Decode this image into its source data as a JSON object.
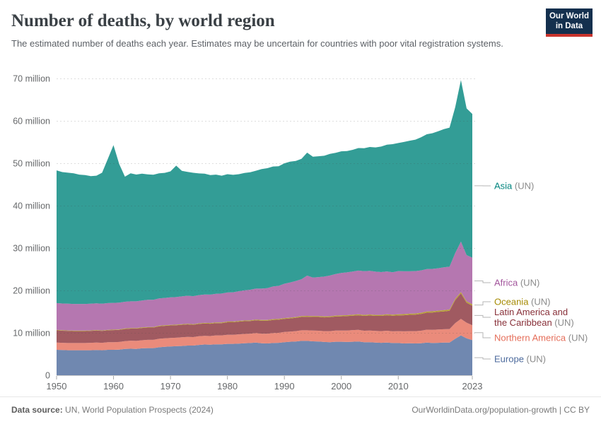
{
  "logo": {
    "line1": "Our World",
    "line2": "in Data"
  },
  "footer": {
    "source_label": "Data source:",
    "source_text": " UN, World Population Prospects (2024)",
    "right_text": "OurWorldinData.org/population-growth | CC BY"
  },
  "chart_data": {
    "type": "area",
    "stacked": true,
    "title": "Number of deaths, by world region",
    "subtitle": "The estimated number of deaths each year. Estimates may be uncertain for countries with poor vital registration systems.",
    "unit": "deaths per year (millions)",
    "ylim": [
      0,
      70
    ],
    "grid": true,
    "legend_position": "right",
    "x": [
      1950,
      1951,
      1952,
      1953,
      1954,
      1955,
      1956,
      1957,
      1958,
      1959,
      1960,
      1961,
      1962,
      1963,
      1964,
      1965,
      1966,
      1967,
      1968,
      1969,
      1970,
      1971,
      1972,
      1973,
      1974,
      1975,
      1976,
      1977,
      1978,
      1979,
      1980,
      1981,
      1982,
      1983,
      1984,
      1985,
      1986,
      1987,
      1988,
      1989,
      1990,
      1991,
      1992,
      1993,
      1994,
      1995,
      1996,
      1997,
      1998,
      1999,
      2000,
      2001,
      2002,
      2003,
      2004,
      2005,
      2006,
      2007,
      2008,
      2009,
      2010,
      2011,
      2012,
      2013,
      2014,
      2015,
      2016,
      2017,
      2018,
      2019,
      2020,
      2021,
      2022,
      2023
    ],
    "y_ticks": [
      {
        "value": 0,
        "label": "0"
      },
      {
        "value": 10,
        "label": "10 million"
      },
      {
        "value": 20,
        "label": "20 million"
      },
      {
        "value": 30,
        "label": "30 million"
      },
      {
        "value": 40,
        "label": "40 million"
      },
      {
        "value": 50,
        "label": "50 million"
      },
      {
        "value": 60,
        "label": "60 million"
      },
      {
        "value": 70,
        "label": "70 million"
      }
    ],
    "x_ticks": [
      {
        "value": 1950,
        "label": "1950"
      },
      {
        "value": 1960,
        "label": "1960"
      },
      {
        "value": 1970,
        "label": "1970"
      },
      {
        "value": 1980,
        "label": "1980"
      },
      {
        "value": 1990,
        "label": "1990"
      },
      {
        "value": 2000,
        "label": "2000"
      },
      {
        "value": 2010,
        "label": "2010"
      },
      {
        "value": 2023,
        "label": "2023"
      }
    ],
    "series": [
      {
        "id": "europe",
        "label": "Europe",
        "suffix": "(UN)",
        "color_fill": "#7088B0",
        "color_text": "#4C6A9C",
        "values": [
          6.0,
          5.95,
          5.9,
          5.9,
          5.9,
          5.9,
          5.9,
          5.95,
          5.9,
          6.0,
          6.0,
          6.05,
          6.2,
          6.25,
          6.2,
          6.35,
          6.4,
          6.4,
          6.6,
          6.7,
          6.8,
          6.85,
          6.9,
          7.0,
          7.0,
          7.15,
          7.25,
          7.2,
          7.3,
          7.3,
          7.4,
          7.4,
          7.45,
          7.55,
          7.6,
          7.7,
          7.55,
          7.5,
          7.6,
          7.65,
          7.8,
          7.9,
          7.95,
          8.1,
          8.1,
          8.0,
          7.95,
          7.85,
          7.8,
          7.9,
          7.9,
          7.85,
          7.9,
          7.95,
          7.8,
          7.8,
          7.7,
          7.65,
          7.7,
          7.6,
          7.6,
          7.5,
          7.55,
          7.5,
          7.55,
          7.7,
          7.6,
          7.65,
          7.7,
          7.7,
          8.6,
          9.4,
          8.7,
          8.3
        ]
      },
      {
        "id": "northern-america",
        "label": "Northern America",
        "suffix": "(UN)",
        "color_fill": "#EA8B7B",
        "color_text": "#E56E5A",
        "values": [
          1.7,
          1.7,
          1.7,
          1.7,
          1.7,
          1.7,
          1.75,
          1.75,
          1.75,
          1.8,
          1.8,
          1.8,
          1.85,
          1.9,
          1.9,
          1.9,
          1.95,
          1.95,
          2.0,
          2.0,
          2.0,
          2.0,
          2.05,
          2.05,
          2.0,
          2.05,
          2.05,
          2.05,
          2.1,
          2.1,
          2.15,
          2.15,
          2.2,
          2.2,
          2.2,
          2.25,
          2.25,
          2.3,
          2.35,
          2.35,
          2.4,
          2.4,
          2.45,
          2.5,
          2.5,
          2.55,
          2.55,
          2.55,
          2.6,
          2.65,
          2.65,
          2.7,
          2.75,
          2.75,
          2.7,
          2.75,
          2.75,
          2.75,
          2.8,
          2.75,
          2.8,
          2.85,
          2.85,
          2.9,
          2.95,
          3.05,
          3.1,
          3.15,
          3.15,
          3.2,
          3.7,
          3.9,
          3.7,
          3.5
        ]
      },
      {
        "id": "latin-america",
        "label": "Latin America and\nthe Caribbean",
        "suffix": "(UN)",
        "color_fill": "#A05A61",
        "color_text": "#883039",
        "values": [
          2.9,
          2.85,
          2.85,
          2.8,
          2.8,
          2.8,
          2.8,
          2.85,
          2.8,
          2.8,
          2.85,
          2.85,
          2.85,
          2.85,
          2.9,
          2.9,
          2.9,
          2.9,
          2.95,
          2.95,
          2.95,
          2.95,
          2.95,
          2.95,
          2.9,
          2.9,
          2.9,
          2.9,
          2.9,
          2.9,
          2.95,
          2.95,
          3.0,
          3.0,
          3.0,
          3.0,
          3.05,
          3.05,
          3.1,
          3.1,
          3.1,
          3.1,
          3.15,
          3.15,
          3.2,
          3.2,
          3.25,
          3.25,
          3.3,
          3.3,
          3.35,
          3.4,
          3.4,
          3.45,
          3.5,
          3.55,
          3.55,
          3.6,
          3.65,
          3.7,
          3.7,
          3.8,
          3.85,
          3.9,
          3.95,
          4.0,
          4.1,
          4.15,
          4.2,
          4.3,
          5.4,
          6.0,
          4.7,
          4.6
        ]
      },
      {
        "id": "oceania",
        "label": "Oceania",
        "suffix": "(UN)",
        "color_fill": "#B8A235",
        "color_text": "#A68B03",
        "values": [
          0.11,
          0.11,
          0.11,
          0.11,
          0.11,
          0.12,
          0.12,
          0.12,
          0.12,
          0.12,
          0.12,
          0.12,
          0.13,
          0.13,
          0.13,
          0.13,
          0.13,
          0.14,
          0.14,
          0.14,
          0.14,
          0.14,
          0.15,
          0.15,
          0.15,
          0.15,
          0.15,
          0.16,
          0.16,
          0.16,
          0.16,
          0.17,
          0.17,
          0.17,
          0.17,
          0.18,
          0.18,
          0.18,
          0.18,
          0.19,
          0.19,
          0.19,
          0.19,
          0.2,
          0.2,
          0.2,
          0.2,
          0.21,
          0.21,
          0.21,
          0.22,
          0.22,
          0.22,
          0.23,
          0.23,
          0.23,
          0.24,
          0.24,
          0.24,
          0.25,
          0.26,
          0.26,
          0.27,
          0.27,
          0.28,
          0.28,
          0.29,
          0.29,
          0.3,
          0.3,
          0.31,
          0.32,
          0.33,
          0.34
        ]
      },
      {
        "id": "africa",
        "label": "Africa",
        "suffix": "(UN)",
        "color_fill": "#B577B0",
        "color_text": "#A2559C",
        "values": [
          6.3,
          6.3,
          6.3,
          6.3,
          6.3,
          6.3,
          6.3,
          6.3,
          6.3,
          6.3,
          6.3,
          6.3,
          6.3,
          6.3,
          6.3,
          6.35,
          6.4,
          6.4,
          6.45,
          6.45,
          6.5,
          6.5,
          6.55,
          6.6,
          6.6,
          6.65,
          6.7,
          6.7,
          6.75,
          6.8,
          6.85,
          6.9,
          7.0,
          7.1,
          7.2,
          7.3,
          7.4,
          7.5,
          7.7,
          7.8,
          8.1,
          8.3,
          8.5,
          8.7,
          9.5,
          9.1,
          9.2,
          9.4,
          9.6,
          9.8,
          10.0,
          10.1,
          10.2,
          10.3,
          10.3,
          10.3,
          10.2,
          10.1,
          10.1,
          10.0,
          10.2,
          10.1,
          10.0,
          10.0,
          10.0,
          10.0,
          10.0,
          10.0,
          10.1,
          10.1,
          10.8,
          11.9,
          10.9,
          11.0
        ]
      },
      {
        "id": "asia",
        "label": "Asia",
        "suffix": "(UN)",
        "color_fill": "#339D96",
        "color_text": "#00847E",
        "values": [
          31.3,
          31.0,
          30.9,
          30.8,
          30.5,
          30.4,
          30.1,
          30.1,
          30.9,
          34.0,
          37.2,
          32.7,
          29.5,
          30.2,
          29.9,
          29.9,
          29.6,
          29.5,
          29.5,
          29.5,
          29.7,
          31.0,
          29.6,
          29.2,
          29.1,
          28.7,
          28.5,
          28.2,
          28.1,
          27.8,
          27.9,
          27.7,
          27.6,
          27.7,
          27.7,
          27.8,
          28.2,
          28.3,
          28.3,
          28.2,
          28.4,
          28.5,
          28.3,
          28.4,
          29.0,
          28.5,
          28.5,
          28.5,
          28.7,
          28.6,
          28.7,
          28.6,
          28.7,
          28.9,
          29.0,
          29.2,
          29.3,
          29.6,
          29.9,
          30.2,
          30.2,
          30.5,
          30.8,
          31.0,
          31.4,
          31.8,
          32.0,
          32.3,
          32.6,
          32.8,
          34.4,
          38.1,
          34.6,
          33.9
        ]
      }
    ]
  }
}
